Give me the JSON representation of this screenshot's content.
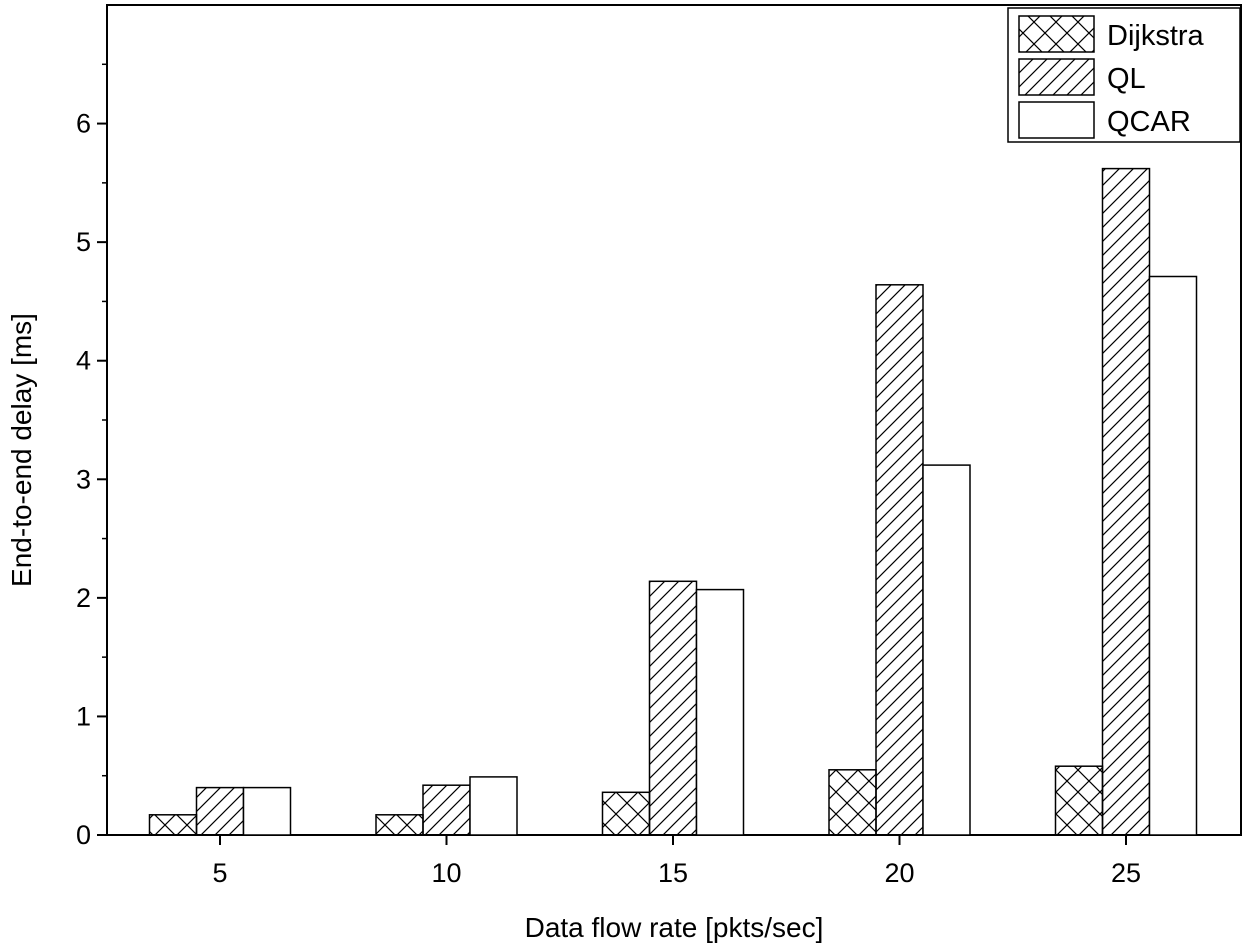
{
  "chart_data": {
    "type": "bar",
    "title": "",
    "xlabel": "Data flow rate [pkts/sec]",
    "ylabel": "End-to-end delay [ms]",
    "categories": [
      "5",
      "10",
      "15",
      "20",
      "25"
    ],
    "series": [
      {
        "name": "Dijkstra",
        "values": [
          0.17,
          0.17,
          0.36,
          0.55,
          0.58
        ],
        "pattern": "crosshatch"
      },
      {
        "name": "QL",
        "values": [
          0.4,
          0.42,
          2.14,
          4.64,
          5.62
        ],
        "pattern": "diagonal"
      },
      {
        "name": "QCAR",
        "values": [
          0.4,
          0.49,
          2.07,
          3.12,
          4.71
        ],
        "pattern": "none"
      }
    ],
    "ylim": [
      0,
      7
    ],
    "yticks": [
      "0",
      "1",
      "2",
      "3",
      "4",
      "5",
      "6"
    ],
    "grid": false,
    "legend_position": "top-right",
    "colors": {
      "stroke": "#000000",
      "fill": "#ffffff"
    }
  }
}
